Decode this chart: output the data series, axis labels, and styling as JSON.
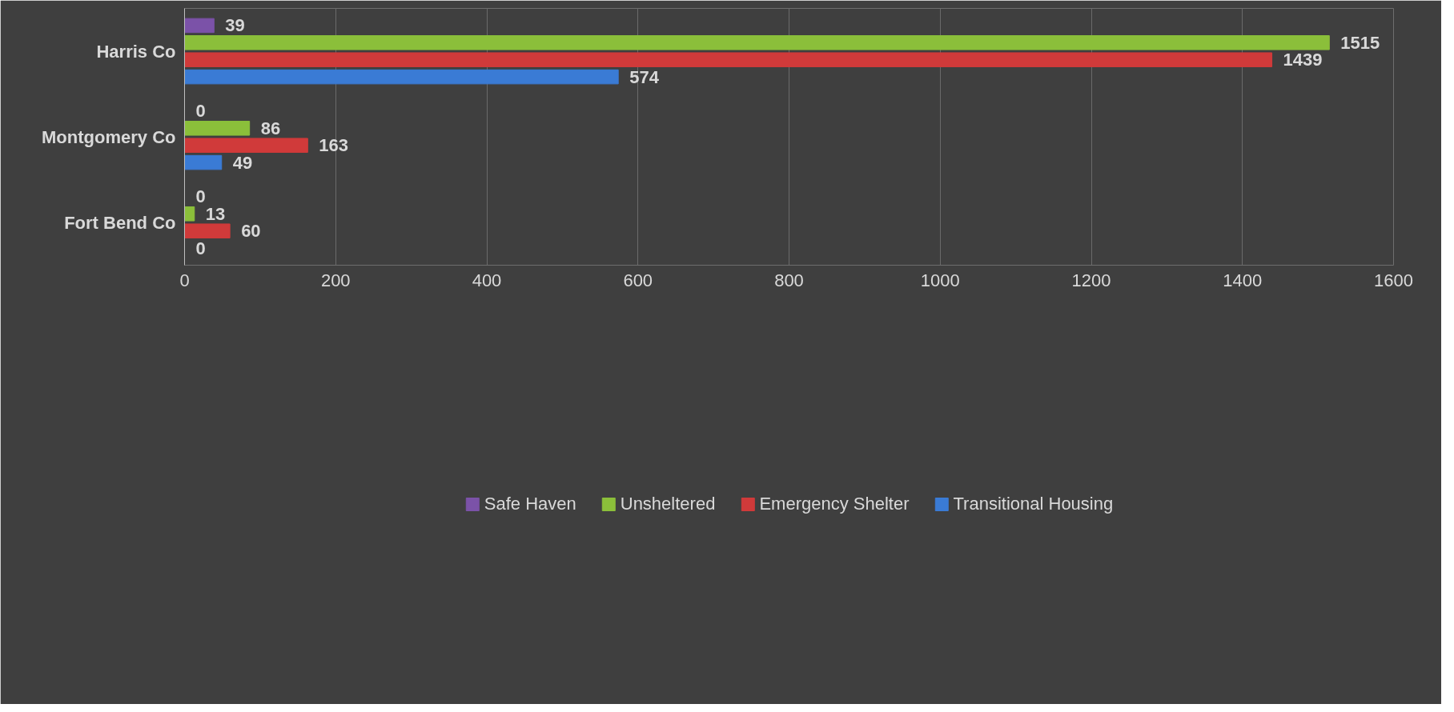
{
  "chart_data": {
    "type": "bar",
    "orientation": "horizontal",
    "categories": [
      "Harris Co",
      "Montgomery Co",
      "Fort Bend Co"
    ],
    "series": [
      {
        "name": "Safe Haven",
        "color": "#7b52a8",
        "values": [
          39,
          0,
          0
        ]
      },
      {
        "name": "Unsheltered",
        "color": "#8bbf3a",
        "values": [
          1515,
          86,
          13
        ]
      },
      {
        "name": "Emergency Shelter",
        "color": "#d03a3a",
        "values": [
          1439,
          163,
          60
        ]
      },
      {
        "name": "Transitional Housing",
        "color": "#3a7bd5",
        "values": [
          574,
          49,
          0
        ]
      }
    ],
    "xlim": [
      0,
      1600
    ],
    "xticks": [
      0,
      200,
      400,
      600,
      800,
      1000,
      1200,
      1400,
      1600
    ],
    "grid": "x",
    "legend": "bottom",
    "data_labels": true
  }
}
